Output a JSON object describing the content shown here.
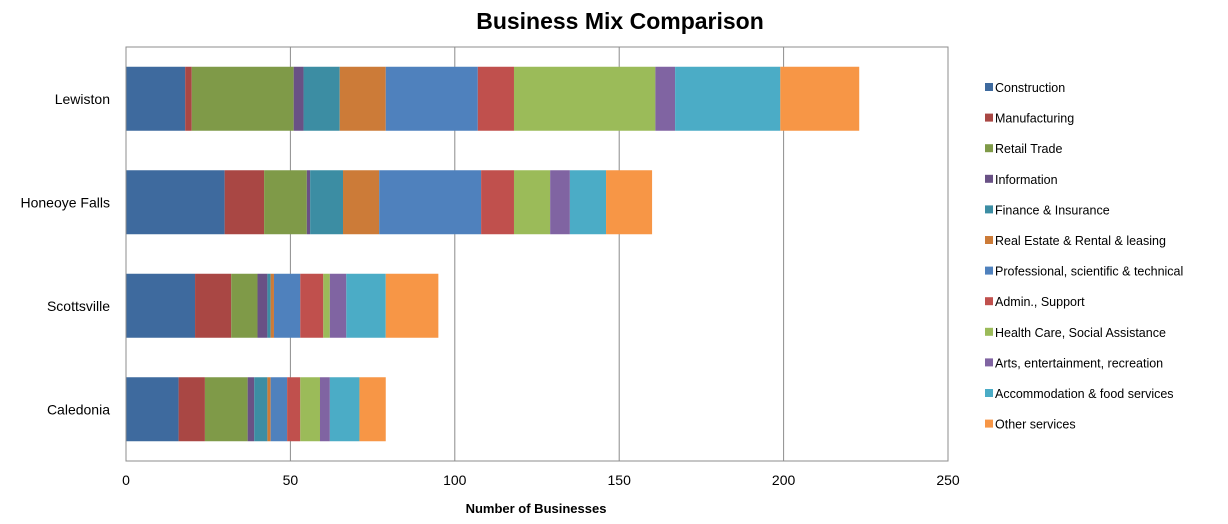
{
  "chart_data": {
    "type": "bar",
    "orientation": "horizontal",
    "stacked": true,
    "title": "Business Mix Comparison",
    "xlabel": "Number of  Businesses",
    "ylabel": "",
    "xlim": [
      0,
      250
    ],
    "x_ticks": [
      0,
      50,
      100,
      150,
      200,
      250
    ],
    "grid": "vertical",
    "legend_position": "right",
    "categories": [
      "Lewiston",
      "Honeoye Falls",
      "Scottsville",
      "Caledonia"
    ],
    "series": [
      {
        "name": "Construction",
        "color": "#3e6a9e",
        "values": [
          18,
          30,
          21,
          16
        ]
      },
      {
        "name": "Manufacturing",
        "color": "#a94744",
        "values": [
          2,
          12,
          11,
          8
        ]
      },
      {
        "name": "Retail Trade",
        "color": "#7f9a48",
        "values": [
          31,
          13,
          8,
          13
        ]
      },
      {
        "name": "Information",
        "color": "#695185",
        "values": [
          3,
          1,
          3,
          2
        ]
      },
      {
        "name": "Finance & Insurance",
        "color": "#3c8da3",
        "values": [
          11,
          10,
          1,
          4
        ]
      },
      {
        "name": "Real Estate & Rental & leasing",
        "color": "#cc7b38",
        "values": [
          14,
          11,
          1,
          1
        ]
      },
      {
        "name": "Professional, scientific & technical",
        "color": "#4f81bd",
        "values": [
          28,
          31,
          8,
          5
        ]
      },
      {
        "name": "Admin., Support",
        "color": "#c0504d",
        "values": [
          11,
          10,
          7,
          4
        ]
      },
      {
        "name": "Health Care, Social  Assistance",
        "color": "#9bbb59",
        "values": [
          43,
          11,
          2,
          6
        ]
      },
      {
        "name": "Arts, entertainment, recreation",
        "color": "#8064a2",
        "values": [
          6,
          6,
          5,
          3
        ]
      },
      {
        "name": "Accommodation & food services",
        "color": "#4bacc6",
        "values": [
          32,
          11,
          12,
          9
        ]
      },
      {
        "name": "Other services",
        "color": "#f79646",
        "values": [
          24,
          14,
          16,
          8
        ]
      }
    ]
  }
}
